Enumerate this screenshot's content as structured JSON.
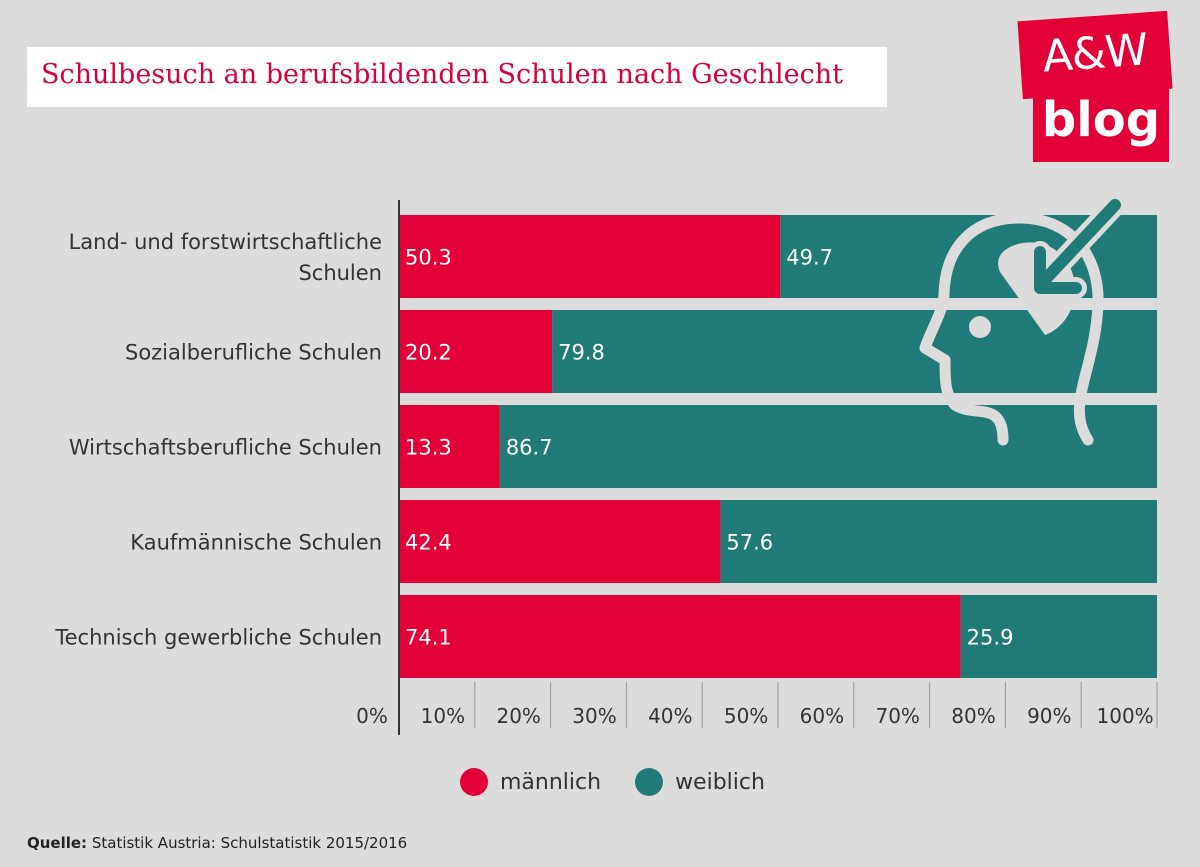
{
  "header": {
    "title": "Schulbesuch an berufsbildenden Schulen nach Geschlecht"
  },
  "logo": {
    "line1": "A&W",
    "line2": "blog"
  },
  "colors": {
    "male": "#e30037",
    "female": "#1f7a78",
    "title": "#d8003a",
    "background": "#dcdcdc"
  },
  "legend": {
    "male_label": "männlich",
    "female_label": "weiblich"
  },
  "source": {
    "label": "Quelle:",
    "text": "Statistik Austria: Schulstatistik 2015/2016"
  },
  "icon": {
    "name": "head-with-arrow-icon"
  },
  "chart_data": {
    "type": "bar",
    "orientation": "horizontal",
    "stacked": true,
    "categories": [
      "Land- und forstwirtschaftliche Schulen",
      "Sozialberufliche Schulen",
      "Wirtschaftsberufliche Schulen",
      "Kaufmännische Schulen",
      "Technisch gewerbliche Schulen"
    ],
    "category_lines": [
      [
        "Land- und forstwirtschaftliche",
        "Schulen"
      ],
      [
        "Sozialberufliche Schulen"
      ],
      [
        "Wirtschaftsberufliche Schulen"
      ],
      [
        "Kaufmännische Schulen"
      ],
      [
        "Technisch gewerbliche Schulen"
      ]
    ],
    "series": [
      {
        "name": "männlich",
        "values": [
          50.3,
          20.2,
          13.3,
          42.4,
          74.1
        ]
      },
      {
        "name": "weiblich",
        "values": [
          49.7,
          79.8,
          86.7,
          57.6,
          25.9
        ]
      }
    ],
    "value_labels": [
      [
        "50.3",
        "20.2",
        "13.3",
        "42.4",
        "74.1"
      ],
      [
        "49.7",
        "79.8",
        "86.7",
        "57.6",
        "25.9"
      ]
    ],
    "x_ticks": [
      "0%",
      "10%",
      "20%",
      "30%",
      "40%",
      "50%",
      "60%",
      "70%",
      "80%",
      "90%",
      "100%"
    ],
    "xlim": [
      0,
      100
    ],
    "legend_position": "bottom"
  }
}
